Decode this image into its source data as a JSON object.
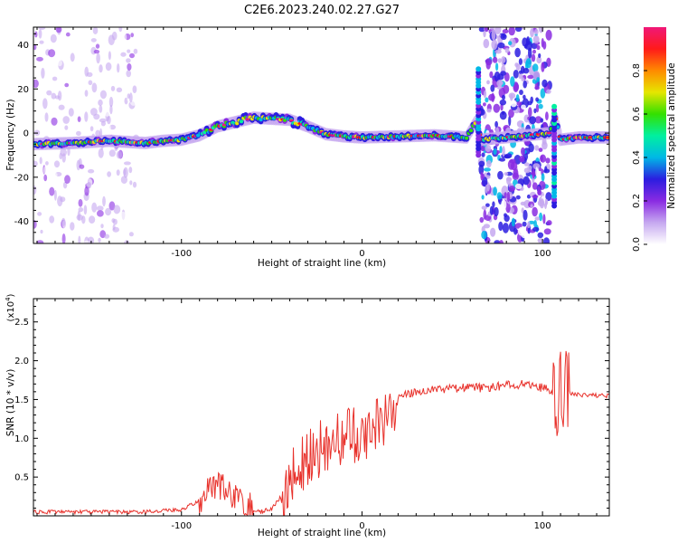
{
  "page_title": "C2E6.2023.240.02.27.G27",
  "chart_data": [
    {
      "type": "heatmap",
      "xlabel": "Height of straight line (km)",
      "ylabel": "Frequency (Hz)",
      "xlim": [
        -182,
        137
      ],
      "ylim": [
        -50,
        48
      ],
      "xticks": [
        -100,
        0,
        100
      ],
      "yticks": [
        -40,
        -20,
        0,
        20,
        40
      ],
      "colorbar": {
        "label": "Normalized spectral amplitude",
        "range": [
          0.0,
          1.0
        ],
        "ticks": [
          "0.0",
          "0.2",
          "0.4",
          "0.6",
          "0.8"
        ],
        "tick_values": [
          0.0,
          0.2,
          0.4,
          0.6,
          0.8
        ],
        "colors": [
          "#ffffff",
          "#c6a8f0",
          "#8a2be2",
          "#2b1de0",
          "#00b8e6",
          "#00f0a0",
          "#33e000",
          "#e6e600",
          "#ff8a00",
          "#ff1a1a",
          "#f01878"
        ]
      },
      "ridge": {
        "x": [
          -182,
          -160,
          -140,
          -120,
          -110,
          -100,
          -90,
          -80,
          -70,
          -60,
          -50,
          -40,
          -30,
          -20,
          -10,
          0,
          20,
          40,
          58,
          63,
          66,
          104,
          107,
          110,
          120,
          137
        ],
        "y": [
          -5,
          -4.5,
          -3.5,
          -4.5,
          -3.5,
          -3,
          -1,
          3,
          5,
          7,
          6.5,
          6,
          3,
          -0.5,
          -1.5,
          -2,
          -1.5,
          -1,
          -2,
          5,
          -3,
          0,
          7,
          -3,
          -2,
          -2
        ]
      },
      "noise_bands_x": [
        [
          -182,
          -125
        ],
        [
          66,
          104
        ]
      ],
      "spikes": [
        {
          "x": 64.5,
          "y_range": [
            -10,
            30
          ]
        },
        {
          "x": 106.5,
          "y_range": [
            -33,
            12
          ]
        }
      ]
    },
    {
      "type": "line",
      "xlabel": "Height of straight line (km)",
      "ylabel": "SNR (10 * v/v)",
      "scale_label": "(x10",
      "scale_exp": "4",
      "scale_close": ")",
      "xlim": [
        -182,
        137
      ],
      "ylim": [
        0,
        2.8
      ],
      "xticks": [
        -100,
        0,
        100
      ],
      "yticks": [
        0.5,
        1.0,
        1.5,
        2.0,
        2.5
      ],
      "series": [
        {
          "color": "#e8312b",
          "x": [
            -182,
            -150,
            -120,
            -100,
            -90,
            -85,
            -80,
            -75,
            -70,
            -60,
            -55,
            -50,
            -45,
            -40,
            -35,
            -30,
            -25,
            -20,
            -15,
            -10,
            -5,
            0,
            5,
            10,
            15,
            20,
            30,
            40,
            50,
            60,
            70,
            80,
            90,
            100,
            105,
            110,
            113,
            120,
            137
          ],
          "y": [
            0.05,
            0.05,
            0.05,
            0.08,
            0.2,
            0.35,
            0.45,
            0.3,
            0.25,
            0.07,
            0.05,
            0.1,
            0.25,
            0.5,
            0.6,
            0.75,
            0.85,
            0.9,
            1.0,
            1.05,
            1.05,
            1.05,
            1.1,
            1.2,
            1.4,
            1.52,
            1.6,
            1.63,
            1.65,
            1.65,
            1.65,
            1.68,
            1.7,
            1.65,
            1.6,
            1.55,
            1.6,
            1.56,
            1.55
          ]
        }
      ]
    }
  ]
}
